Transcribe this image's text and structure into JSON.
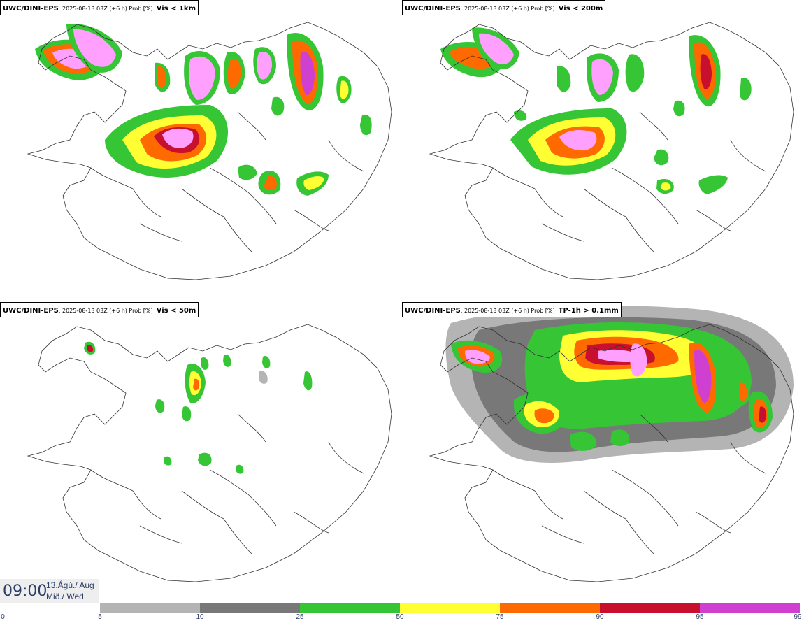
{
  "panels": [
    {
      "model": "UWC/DINI-EPS",
      "run": ": 2025-08-13 03Z (+6 h) Prob [%]",
      "param": "Vis < 1km"
    },
    {
      "model": "UWC/DINI-EPS",
      "run": ": 2025-08-13 03Z (+6 h) Prob [%]",
      "param": "Vis < 200m"
    },
    {
      "model": "UWC/DINI-EPS",
      "run": ": 2025-08-13 03Z (+6 h) Prob [%]",
      "param": "Vis < 50m"
    },
    {
      "model": "UWC/DINI-EPS",
      "run": ": 2025-08-13 03Z (+6 h) Prob [%]",
      "param": "TP-1h > 0.1mm"
    }
  ],
  "timestamp": {
    "time": "09:00",
    "date_line1": "13.Ágú./ Aug",
    "date_line2": "Mið./ Wed"
  },
  "legend": {
    "ticks": [
      "0",
      "5",
      "10",
      "25",
      "50",
      "75",
      "90",
      "95",
      "99"
    ],
    "colors": [
      "#ffffff",
      "#b4b4b4",
      "#787878",
      "#35c535",
      "#ffff33",
      "#ff6a00",
      "#c8102e",
      "#d040d0",
      "#ffa0ff"
    ]
  }
}
